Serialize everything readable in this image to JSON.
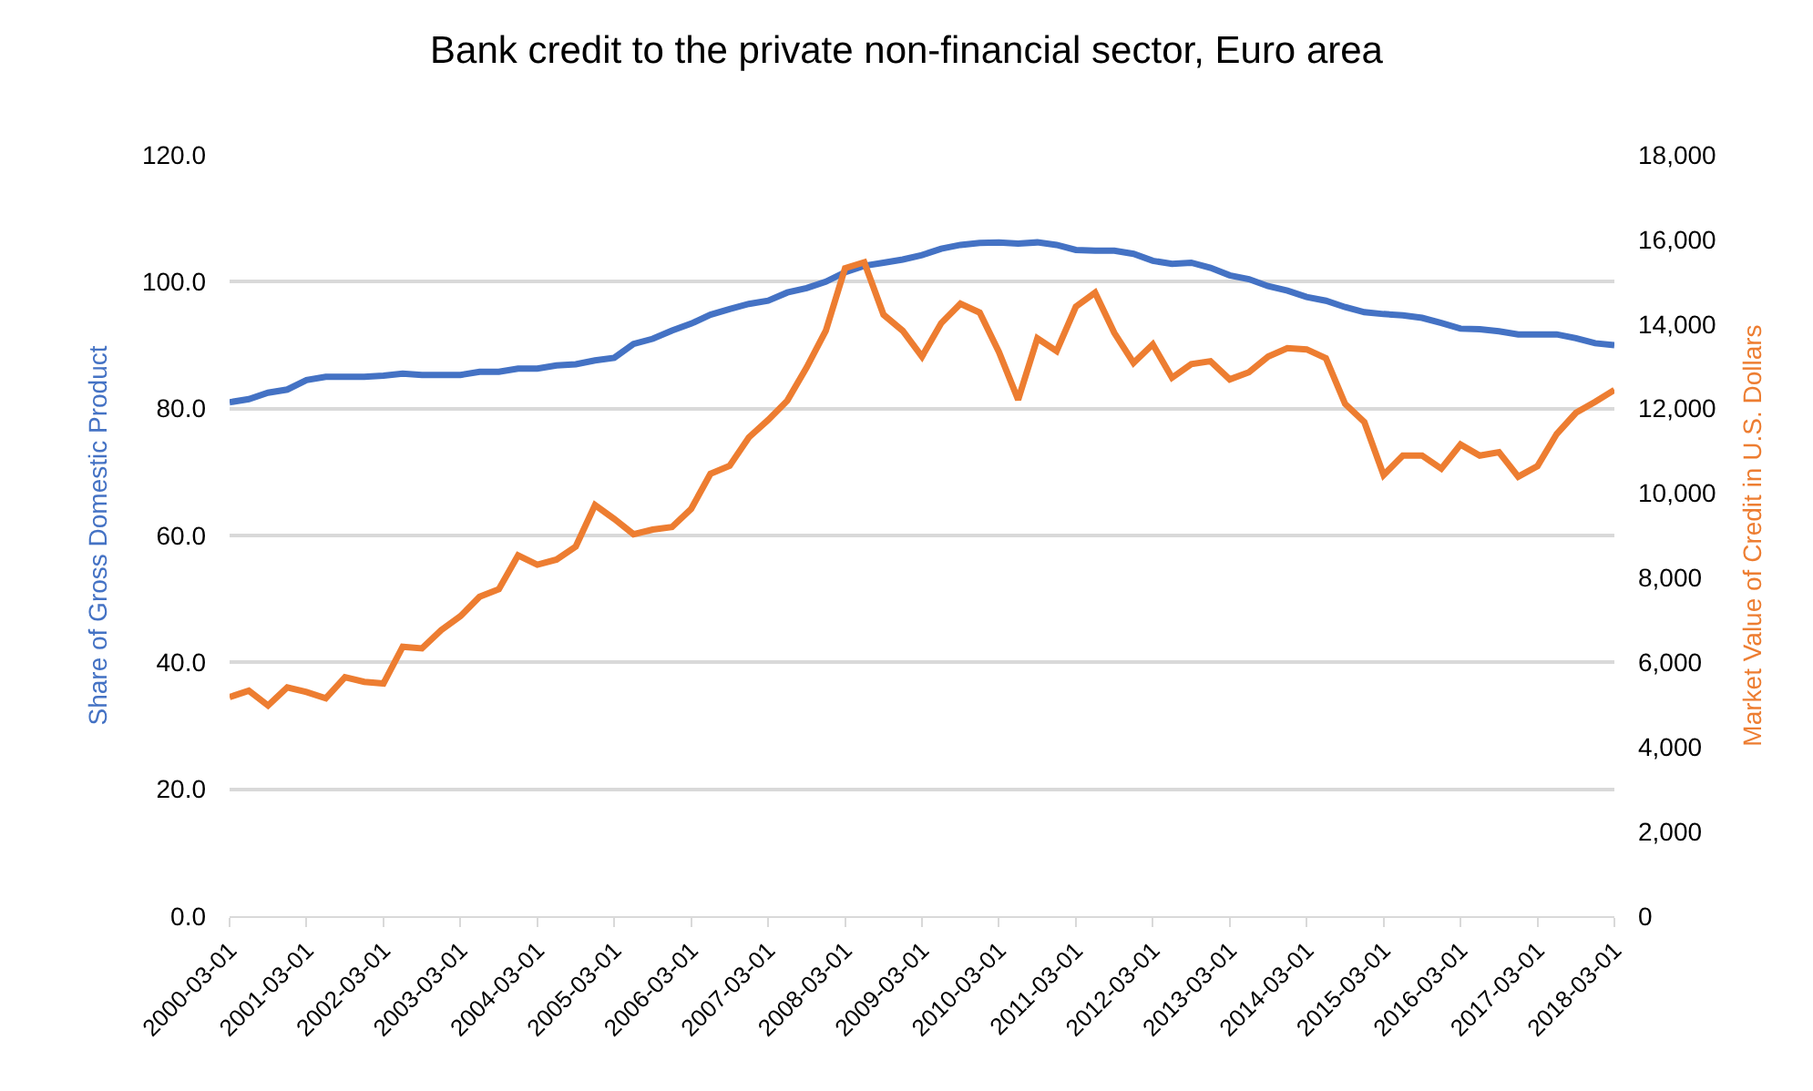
{
  "chart_data": {
    "type": "line",
    "title": "Bank credit to the private non-financial sector, Euro area",
    "ylabel": "Share of Gross Domestic Product",
    "y2label": "Market Value of Credit in U.S. Dollars",
    "categories": [
      "2000-03-01",
      null,
      null,
      null,
      "2001-03-01",
      null,
      null,
      null,
      "2002-03-01",
      null,
      null,
      null,
      "2003-03-01",
      null,
      null,
      null,
      "2004-03-01",
      null,
      null,
      null,
      "2005-03-01",
      null,
      null,
      null,
      "2006-03-01",
      null,
      null,
      null,
      "2007-03-01",
      null,
      null,
      null,
      "2008-03-01",
      null,
      null,
      null,
      "2009-03-01",
      null,
      null,
      null,
      "2010-03-01",
      null,
      null,
      null,
      "2011-03-01",
      null,
      null,
      null,
      "2012-03-01",
      null,
      null,
      null,
      "2013-03-01",
      null,
      null,
      null,
      "2014-03-01",
      null,
      null,
      null,
      "2015-03-01",
      null,
      null,
      null,
      "2016-03-01",
      null,
      null,
      null,
      "2017-03-01",
      null,
      null,
      null,
      "2018-03-01"
    ],
    "series": [
      {
        "color": "#4472c4",
        "values": [
          81.0,
          81.5,
          82.5,
          83.0,
          84.5,
          85.0,
          85.0,
          85.0,
          85.2,
          85.5,
          85.3,
          85.3,
          85.3,
          85.8,
          85.8,
          86.3,
          86.3,
          86.8,
          87.0,
          87.6,
          88.0,
          90.2,
          91.0,
          92.3,
          93.4,
          94.8,
          95.7,
          96.5,
          97.0,
          98.3,
          99.0,
          100.0,
          101.5,
          102.5,
          103.0,
          103.5,
          104.2,
          105.2,
          105.8,
          106.1,
          106.2,
          106.0,
          106.2,
          105.8,
          105.0,
          104.9,
          104.9,
          104.4,
          103.3,
          102.8,
          103.0,
          102.2,
          101.0,
          100.4,
          99.3,
          98.6,
          97.6,
          97.0,
          96.0,
          95.2,
          94.9,
          94.7,
          94.3,
          93.5,
          92.6,
          92.5,
          92.2,
          91.7,
          91.7,
          91.7,
          91.1,
          90.3,
          90.0
        ]
      },
      {
        "color": "#ed7d31",
        "axis": "y2",
        "values": [
          5180,
          5330,
          4980,
          5410,
          5300,
          5150,
          5650,
          5540,
          5500,
          6370,
          6330,
          6760,
          7090,
          7550,
          7730,
          8530,
          8310,
          8430,
          8740,
          9720,
          9390,
          9030,
          9140,
          9200,
          9630,
          10460,
          10650,
          11320,
          11730,
          12190,
          12970,
          13840,
          15320,
          15460,
          14220,
          13840,
          13230,
          14020,
          14480,
          14270,
          13340,
          12210,
          13660,
          13360,
          14410,
          14740,
          13790,
          13080,
          13520,
          12730,
          13050,
          13120,
          12690,
          12860,
          13230,
          13430,
          13400,
          13190,
          12110,
          11680,
          10430,
          10890,
          10890,
          10580,
          11150,
          10890,
          10970,
          10390,
          10640,
          11400,
          11900,
          12160,
          12440
        ]
      }
    ],
    "ylim": [
      0,
      120
    ],
    "yticks": [
      {
        "value": 0,
        "label": "0.0"
      },
      {
        "value": 20,
        "label": "20.0"
      },
      {
        "value": 40,
        "label": "40.0"
      },
      {
        "value": 60,
        "label": "60.0"
      },
      {
        "value": 80,
        "label": "80.0"
      },
      {
        "value": 100,
        "label": "100.0"
      },
      {
        "value": 120,
        "label": "120.0"
      }
    ],
    "y2lim": [
      0,
      18000
    ],
    "y2ticks": [
      0,
      {
        "value": 2000,
        "label": "2,000"
      },
      {
        "value": 4000,
        "label": "4,000"
      },
      {
        "value": 6000,
        "label": "6,000"
      },
      {
        "value": 8000,
        "label": "8,000"
      },
      {
        "value": 10000,
        "label": "10,000"
      },
      {
        "value": 12000,
        "label": "12,000"
      },
      {
        "value": 14000,
        "label": "14,000"
      },
      {
        "value": 16000,
        "label": "16,000"
      },
      {
        "value": 18000,
        "label": "18,000"
      }
    ],
    "grid": "y",
    "marker": "none",
    "line_style": "solid"
  }
}
